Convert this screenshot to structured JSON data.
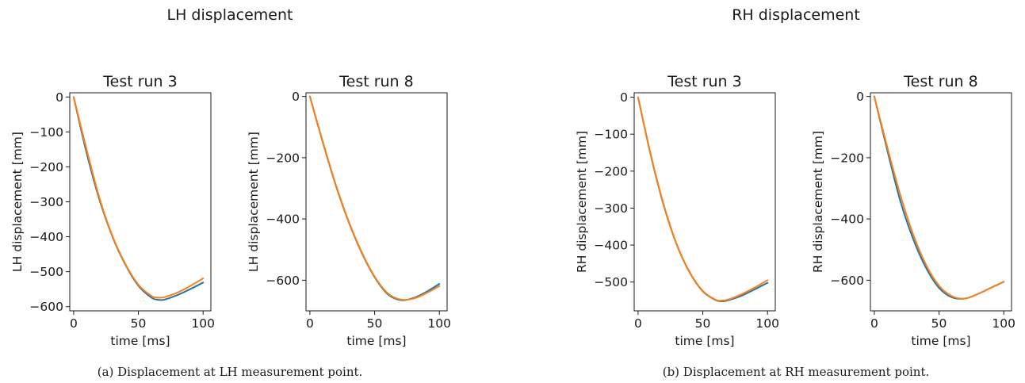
{
  "figures": [
    {
      "suptitle": "LH displacement",
      "caption": "(a) Displacement at LH measurement point."
    },
    {
      "suptitle": "RH displacement",
      "caption": "(b) Displacement at RH measurement point."
    }
  ],
  "chart_data": [
    {
      "type": "line",
      "title": "Test run 3",
      "xlabel": "time [ms]",
      "ylabel": "LH displacement [mm]",
      "xlim": [
        -3,
        106
      ],
      "ylim": [
        -612,
        12
      ],
      "xticks": [
        0,
        50,
        100
      ],
      "yticks": [
        0,
        -100,
        -200,
        -300,
        -400,
        -500,
        -600
      ],
      "grid": false,
      "series": [
        {
          "color": "#1f77b4",
          "x": [
            0,
            10,
            20,
            30,
            40,
            50,
            60,
            65,
            70,
            80,
            90,
            100
          ],
          "y": [
            0,
            -160,
            -295,
            -400,
            -480,
            -540,
            -574,
            -580,
            -580,
            -567,
            -550,
            -531
          ]
        },
        {
          "color": "#ff7f0e",
          "x": [
            0,
            10,
            20,
            30,
            40,
            50,
            60,
            65,
            70,
            80,
            90,
            100
          ],
          "y": [
            0,
            -150,
            -290,
            -398,
            -478,
            -537,
            -569,
            -574,
            -573,
            -560,
            -541,
            -519
          ]
        }
      ]
    },
    {
      "type": "line",
      "title": "Test run 8",
      "xlabel": "time [ms]",
      "ylabel": "LH displacement [mm]",
      "xlim": [
        -3,
        106
      ],
      "ylim": [
        -700,
        12
      ],
      "xticks": [
        0,
        50,
        100
      ],
      "yticks": [
        0,
        -200,
        -400,
        -600
      ],
      "grid": false,
      "series": [
        {
          "color": "#1f77b4",
          "x": [
            0,
            10,
            20,
            30,
            40,
            50,
            60,
            70,
            80,
            90,
            100
          ],
          "y": [
            0,
            -150,
            -290,
            -410,
            -510,
            -590,
            -645,
            -665,
            -658,
            -638,
            -612
          ]
        },
        {
          "color": "#ff7f0e",
          "x": [
            0,
            10,
            20,
            30,
            40,
            50,
            60,
            70,
            80,
            90,
            100
          ],
          "y": [
            0,
            -148,
            -288,
            -408,
            -508,
            -588,
            -642,
            -663,
            -660,
            -642,
            -619
          ]
        }
      ]
    },
    {
      "type": "line",
      "title": "Test run 3",
      "xlabel": "time [ms]",
      "ylabel": "RH displacement [mm]",
      "xlim": [
        -3,
        106
      ],
      "ylim": [
        -578,
        12
      ],
      "xticks": [
        0,
        50,
        100
      ],
      "yticks": [
        0,
        -100,
        -200,
        -300,
        -400,
        -500
      ],
      "grid": false,
      "series": [
        {
          "color": "#1f77b4",
          "x": [
            0,
            10,
            20,
            30,
            40,
            50,
            60,
            65,
            70,
            80,
            90,
            100
          ],
          "y": [
            0,
            -160,
            -295,
            -400,
            -475,
            -525,
            -549,
            -552,
            -549,
            -537,
            -520,
            -502
          ]
        },
        {
          "color": "#ff7f0e",
          "x": [
            0,
            10,
            20,
            30,
            40,
            50,
            60,
            65,
            70,
            80,
            90,
            100
          ],
          "y": [
            0,
            -158,
            -293,
            -399,
            -474,
            -524,
            -548,
            -550,
            -547,
            -533,
            -515,
            -495
          ]
        }
      ]
    },
    {
      "type": "line",
      "title": "Test run 8",
      "xlabel": "time [ms]",
      "ylabel": "RH displacement [mm]",
      "xlim": [
        -3,
        106
      ],
      "ylim": [
        -700,
        12
      ],
      "xticks": [
        0,
        50,
        100
      ],
      "yticks": [
        0,
        -200,
        -400,
        -600
      ],
      "grid": false,
      "series": [
        {
          "color": "#1f77b4",
          "x": [
            0,
            10,
            20,
            30,
            40,
            50,
            60,
            70,
            80,
            90,
            100
          ],
          "y": [
            0,
            -175,
            -340,
            -465,
            -560,
            -625,
            -656,
            -660,
            -645,
            -625,
            -605
          ]
        },
        {
          "color": "#ff7f0e",
          "x": [
            0,
            10,
            20,
            30,
            40,
            50,
            60,
            70,
            80,
            90,
            100
          ],
          "y": [
            0,
            -165,
            -320,
            -450,
            -550,
            -618,
            -652,
            -660,
            -645,
            -625,
            -605
          ]
        }
      ]
    }
  ]
}
